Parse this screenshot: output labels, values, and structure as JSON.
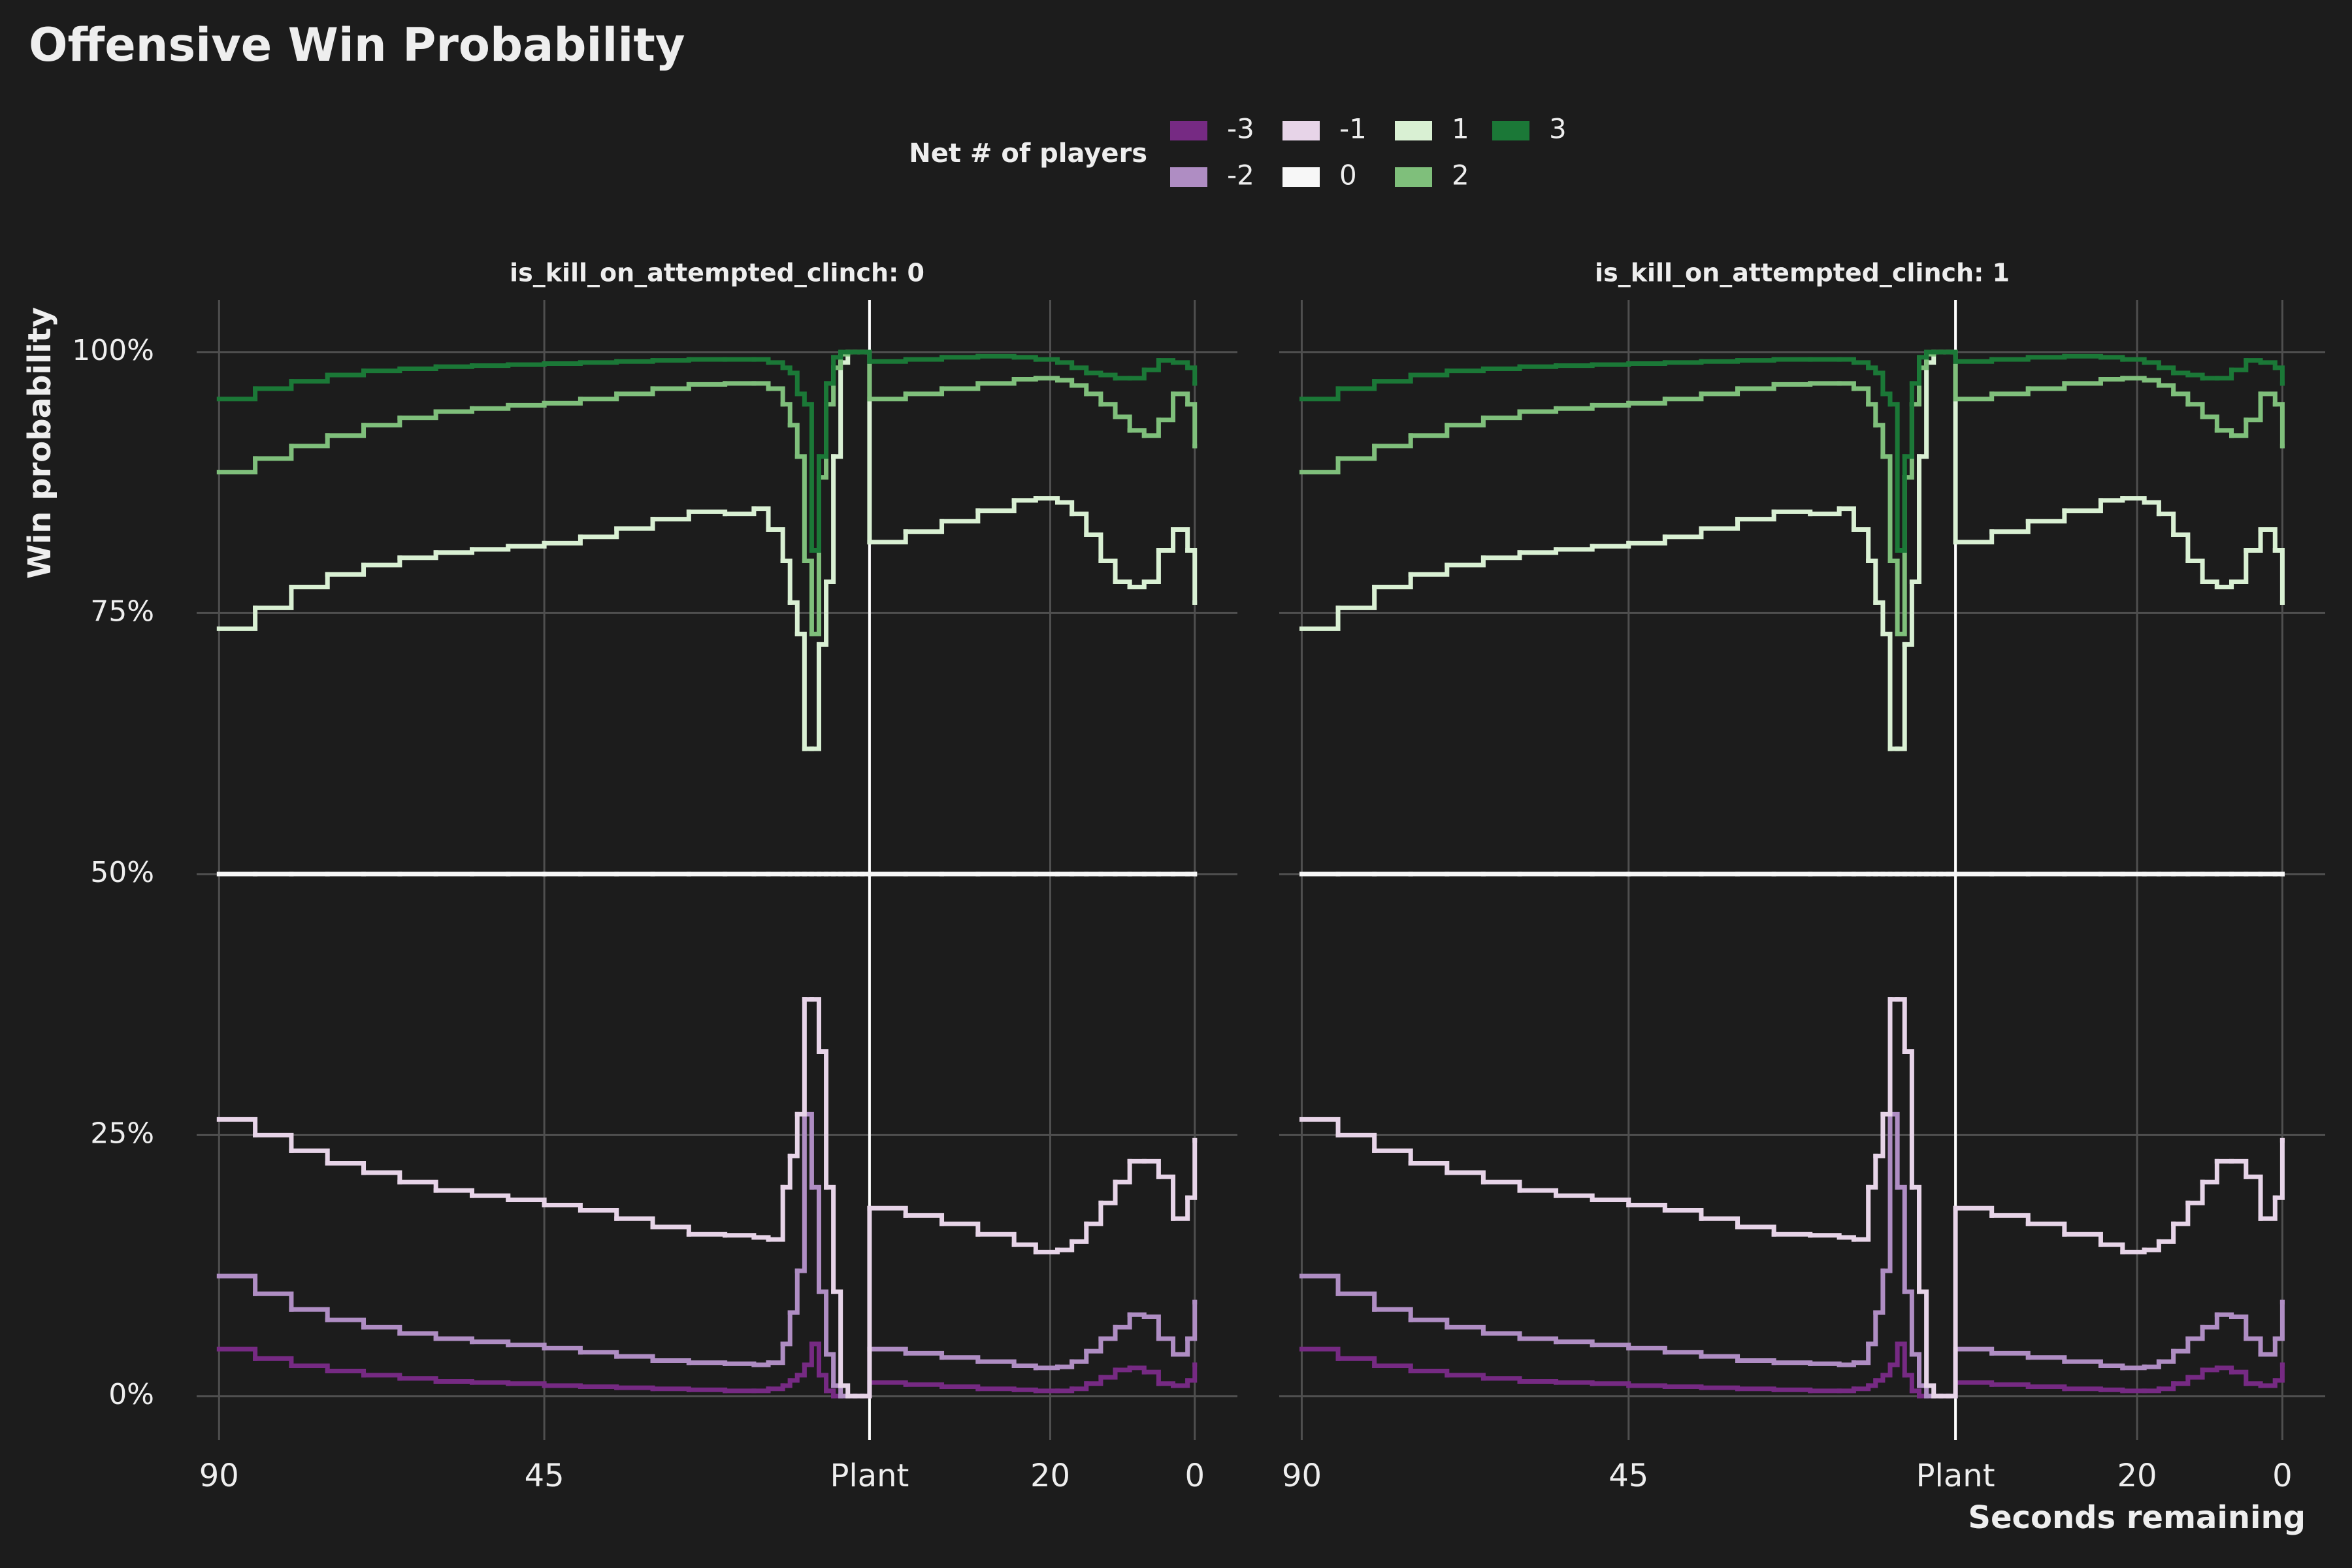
{
  "title": "Offensive Win Probability",
  "legend_title": "Net # of players",
  "x_label": "Seconds remaining",
  "y_label": "Win probability",
  "chart_data": [
    {
      "type": "line",
      "step": true,
      "grid": true,
      "title": "is_kill_on_attempted_clinch: 0",
      "x": [
        0,
        5,
        10,
        15,
        20,
        25,
        30,
        35,
        40,
        45,
        50,
        55,
        60,
        65,
        70,
        74,
        76,
        78,
        79,
        80,
        81,
        82,
        83,
        84,
        85,
        86,
        87,
        88,
        89,
        90,
        95,
        100,
        105,
        110,
        113,
        116,
        118,
        120,
        122,
        124,
        126,
        128,
        130,
        132,
        134,
        135
      ],
      "xlim": [
        -3.1,
        140.9
      ],
      "xticks": [
        {
          "value": 0,
          "label": "90"
        },
        {
          "value": 45,
          "label": "45"
        },
        {
          "value": 90,
          "label": "Plant"
        },
        {
          "value": 115,
          "label": "20"
        },
        {
          "value": 135,
          "label": "0"
        }
      ],
      "ylim": [
        -4.2,
        105
      ],
      "yticks": [
        {
          "value": 0,
          "label": "0%"
        },
        {
          "value": 25,
          "label": "25%"
        },
        {
          "value": 50,
          "label": "50%"
        },
        {
          "value": 75,
          "label": "75%"
        },
        {
          "value": 100,
          "label": "100%"
        }
      ],
      "vline": 90,
      "series": [
        {
          "name": "-3",
          "color": "#762a83",
          "values": [
            4.5,
            3.6,
            2.9,
            2.4,
            2,
            1.7,
            1.4,
            1.3,
            1.2,
            1,
            0.9,
            0.8,
            0.7,
            0.6,
            0.5,
            0.5,
            0.7,
            1,
            1.5,
            2,
            3,
            5,
            2,
            0.5,
            0,
            0,
            0,
            0,
            0,
            1.3,
            1.1,
            0.9,
            0.7,
            0.6,
            0.5,
            0.5,
            0.7,
            1.2,
            1.8,
            2.5,
            2.7,
            2.3,
            1.2,
            1,
            1.5,
            3
          ]
        },
        {
          "name": "-2",
          "color": "#af8dc3",
          "values": [
            11.5,
            9.8,
            8.3,
            7.3,
            6.6,
            6,
            5.5,
            5.2,
            4.9,
            4.6,
            4.2,
            3.8,
            3.4,
            3.2,
            3.1,
            3,
            3.2,
            5,
            8,
            12,
            27,
            20,
            10,
            4,
            1,
            0,
            0,
            0,
            0,
            4.5,
            4.1,
            3.7,
            3.3,
            2.9,
            2.7,
            2.8,
            3.3,
            4.3,
            5.5,
            6.6,
            7.8,
            7.6,
            5.5,
            4,
            5.5,
            9
          ]
        },
        {
          "name": "-1",
          "color": "#e7d4e8",
          "values": [
            26.5,
            25,
            23.5,
            22.3,
            21.4,
            20.5,
            19.7,
            19.2,
            18.8,
            18.3,
            17.8,
            17,
            16.2,
            15.5,
            15.4,
            15.2,
            15,
            20,
            23,
            27,
            38,
            38,
            33,
            20,
            10,
            1,
            0,
            0,
            0,
            18,
            17.3,
            16.5,
            15.5,
            14.5,
            13.8,
            14,
            14.8,
            16.5,
            18.5,
            20.5,
            22.5,
            22.5,
            21,
            17,
            19,
            24.5
          ]
        },
        {
          "name": "0",
          "color": "#f7f7f7",
          "values": [
            50,
            50,
            50,
            50,
            50,
            50,
            50,
            50,
            50,
            50,
            50,
            50,
            50,
            50,
            50,
            50,
            50,
            50,
            50,
            50,
            50,
            50,
            50,
            50,
            50,
            50,
            50,
            50,
            50,
            50,
            50,
            50,
            50,
            50,
            50,
            50,
            50,
            50,
            50,
            50,
            50,
            50,
            50,
            50,
            50,
            50
          ]
        },
        {
          "name": "1",
          "color": "#d9f0d3",
          "values": [
            73.5,
            75.5,
            77.5,
            78.7,
            79.6,
            80.3,
            80.8,
            81.1,
            81.4,
            81.7,
            82.3,
            83.1,
            84,
            84.7,
            84.5,
            85,
            83,
            80,
            76,
            73,
            62,
            62,
            72,
            78,
            90,
            99,
            100,
            100,
            100,
            81.8,
            82.8,
            83.8,
            84.8,
            85.8,
            86,
            85.6,
            84.5,
            82.5,
            80,
            78,
            77.5,
            78,
            81,
            83,
            81,
            76
          ]
        },
        {
          "name": "2",
          "color": "#7fbf7b",
          "values": [
            88.5,
            89.8,
            91,
            92,
            93,
            93.7,
            94.3,
            94.6,
            94.9,
            95.1,
            95.5,
            96,
            96.5,
            96.9,
            97,
            97,
            96.5,
            95,
            93,
            90,
            80,
            73,
            88,
            95,
            98.5,
            99.8,
            100,
            100,
            100,
            95.5,
            96,
            96.5,
            97,
            97.4,
            97.5,
            97.3,
            96.8,
            96,
            95,
            93.8,
            92.5,
            92,
            93.5,
            96,
            95,
            91
          ]
        },
        {
          "name": "3",
          "color": "#1b7837",
          "values": [
            95.5,
            96.5,
            97.2,
            97.8,
            98.2,
            98.4,
            98.6,
            98.7,
            98.8,
            98.9,
            99.0,
            99.1,
            99.2,
            99.3,
            99.3,
            99.3,
            99.0,
            98.5,
            98,
            96,
            95,
            81,
            90,
            97,
            99.5,
            100,
            100,
            100,
            100,
            99.1,
            99.3,
            99.5,
            99.6,
            99.5,
            99.3,
            99,
            98.5,
            98,
            97.8,
            97.5,
            97.5,
            98.3,
            99.2,
            99,
            98.5,
            97
          ]
        }
      ]
    },
    {
      "type": "line",
      "step": true,
      "grid": true,
      "title": "is_kill_on_attempted_clinch: 1",
      "x": [
        0,
        5,
        10,
        15,
        20,
        25,
        30,
        35,
        40,
        45,
        50,
        55,
        60,
        65,
        70,
        74,
        76,
        78,
        79,
        80,
        81,
        82,
        83,
        84,
        85,
        86,
        87,
        88,
        89,
        90,
        95,
        100,
        105,
        110,
        113,
        116,
        118,
        120,
        122,
        124,
        126,
        128,
        130,
        132,
        134,
        135
      ],
      "xlim": [
        -3.1,
        140.9
      ],
      "xticks": [
        {
          "value": 0,
          "label": "90"
        },
        {
          "value": 45,
          "label": "45"
        },
        {
          "value": 90,
          "label": "Plant"
        },
        {
          "value": 115,
          "label": "20"
        },
        {
          "value": 135,
          "label": "0"
        }
      ],
      "ylim": [
        -4.2,
        105
      ],
      "yticks": [
        {
          "value": 0,
          "label": "0%"
        },
        {
          "value": 25,
          "label": "25%"
        },
        {
          "value": 50,
          "label": "50%"
        },
        {
          "value": 75,
          "label": "75%"
        },
        {
          "value": 100,
          "label": "100%"
        }
      ],
      "vline": 90,
      "series": [
        {
          "name": "-3",
          "color": "#762a83",
          "values": [
            4.5,
            3.6,
            2.9,
            2.4,
            2,
            1.7,
            1.4,
            1.3,
            1.2,
            1,
            0.9,
            0.8,
            0.7,
            0.6,
            0.5,
            0.5,
            0.7,
            1,
            1.5,
            2,
            3,
            5,
            2,
            0.5,
            0,
            0,
            0,
            0,
            0,
            1.3,
            1.1,
            0.9,
            0.7,
            0.6,
            0.5,
            0.5,
            0.7,
            1.2,
            1.8,
            2.5,
            2.7,
            2.3,
            1.2,
            1,
            1.5,
            3
          ]
        },
        {
          "name": "-2",
          "color": "#af8dc3",
          "values": [
            11.5,
            9.8,
            8.3,
            7.3,
            6.6,
            6,
            5.5,
            5.2,
            4.9,
            4.6,
            4.2,
            3.8,
            3.4,
            3.2,
            3.1,
            3,
            3.2,
            5,
            8,
            12,
            27,
            20,
            10,
            4,
            1,
            0,
            0,
            0,
            0,
            4.5,
            4.1,
            3.7,
            3.3,
            2.9,
            2.7,
            2.8,
            3.3,
            4.3,
            5.5,
            6.6,
            7.8,
            7.6,
            5.5,
            4,
            5.5,
            9
          ]
        },
        {
          "name": "-1",
          "color": "#e7d4e8",
          "values": [
            26.5,
            25,
            23.5,
            22.3,
            21.4,
            20.5,
            19.7,
            19.2,
            18.8,
            18.3,
            17.8,
            17,
            16.2,
            15.5,
            15.4,
            15.2,
            15,
            20,
            23,
            27,
            38,
            38,
            33,
            20,
            10,
            1,
            0,
            0,
            0,
            18,
            17.3,
            16.5,
            15.5,
            14.5,
            13.8,
            14,
            14.8,
            16.5,
            18.5,
            20.5,
            22.5,
            22.5,
            21,
            17,
            19,
            24.5
          ]
        },
        {
          "name": "0",
          "color": "#f7f7f7",
          "values": [
            50,
            50,
            50,
            50,
            50,
            50,
            50,
            50,
            50,
            50,
            50,
            50,
            50,
            50,
            50,
            50,
            50,
            50,
            50,
            50,
            50,
            50,
            50,
            50,
            50,
            50,
            50,
            50,
            50,
            50,
            50,
            50,
            50,
            50,
            50,
            50,
            50,
            50,
            50,
            50,
            50,
            50,
            50,
            50,
            50,
            50
          ]
        },
        {
          "name": "1",
          "color": "#d9f0d3",
          "values": [
            73.5,
            75.5,
            77.5,
            78.7,
            79.6,
            80.3,
            80.8,
            81.1,
            81.4,
            81.7,
            82.3,
            83.1,
            84,
            84.7,
            84.5,
            85,
            83,
            80,
            76,
            73,
            62,
            62,
            72,
            78,
            90,
            99,
            100,
            100,
            100,
            81.8,
            82.8,
            83.8,
            84.8,
            85.8,
            86,
            85.6,
            84.5,
            82.5,
            80,
            78,
            77.5,
            78,
            81,
            83,
            81,
            76
          ]
        },
        {
          "name": "2",
          "color": "#7fbf7b",
          "values": [
            88.5,
            89.8,
            91,
            92,
            93,
            93.7,
            94.3,
            94.6,
            94.9,
            95.1,
            95.5,
            96,
            96.5,
            96.9,
            97,
            97,
            96.5,
            95,
            93,
            90,
            80,
            73,
            88,
            95,
            98.5,
            99.8,
            100,
            100,
            100,
            95.5,
            96,
            96.5,
            97,
            97.4,
            97.5,
            97.3,
            96.8,
            96,
            95,
            93.8,
            92.5,
            92,
            93.5,
            96,
            95,
            91
          ]
        },
        {
          "name": "3",
          "color": "#1b7837",
          "values": [
            95.5,
            96.5,
            97.2,
            97.8,
            98.2,
            98.4,
            98.6,
            98.7,
            98.8,
            98.9,
            99.0,
            99.1,
            99.2,
            99.3,
            99.3,
            99.3,
            99.0,
            98.5,
            98,
            96,
            95,
            81,
            90,
            97,
            99.5,
            100,
            100,
            100,
            100,
            99.1,
            99.3,
            99.5,
            99.6,
            99.5,
            99.3,
            99,
            98.5,
            98,
            97.8,
            97.5,
            97.5,
            98.3,
            99.2,
            99,
            98.5,
            97
          ]
        }
      ]
    }
  ]
}
